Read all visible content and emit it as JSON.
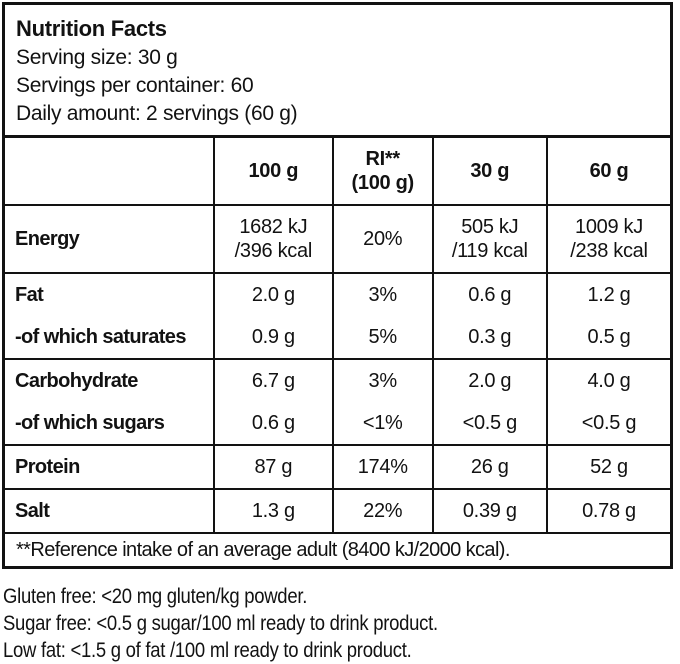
{
  "label": {
    "title": "Nutrition Facts",
    "serving_size": "Serving size: 30 g",
    "servings_per_container": "Servings per container: 60",
    "daily_amount": "Daily amount: 2 servings (60 g)"
  },
  "table": {
    "columns": [
      "",
      "100 g",
      "RI**\n(100 g)",
      "30 g",
      "60 g"
    ],
    "rows": [
      {
        "label": "Energy",
        "sub": false,
        "values": [
          "1682 kJ\n/396 kcal",
          "20%",
          "505 kJ\n/119 kcal",
          "1009 kJ\n/238 kcal"
        ]
      },
      {
        "label": "Fat",
        "sub": false,
        "values": [
          "2.0 g",
          "3%",
          "0.6 g",
          "1.2 g"
        ]
      },
      {
        "label": "-of which saturates",
        "sub": true,
        "values": [
          "0.9 g",
          "5%",
          "0.3 g",
          "0.5 g"
        ]
      },
      {
        "label": "Carbohydrate",
        "sub": false,
        "values": [
          "6.7 g",
          "3%",
          "2.0 g",
          "4.0 g"
        ]
      },
      {
        "label": "-of which sugars",
        "sub": true,
        "values": [
          "0.6 g",
          "<1%",
          "<0.5 g",
          "<0.5 g"
        ]
      },
      {
        "label": "Protein",
        "sub": false,
        "values": [
          "87 g",
          "174%",
          "26 g",
          "52 g"
        ]
      },
      {
        "label": "Salt",
        "sub": false,
        "values": [
          "1.3 g",
          "22%",
          "0.39 g",
          "0.78 g"
        ]
      }
    ],
    "footnote": "**Reference intake of an average adult (8400 kJ/2000 kcal)."
  },
  "claims": [
    "Gluten free: <20 mg gluten/kg powder.",
    "Sugar free: <0.5 g sugar/100 ml ready to drink product.",
    "Low fat: <1.5 g of fat /100 ml ready to drink product."
  ]
}
